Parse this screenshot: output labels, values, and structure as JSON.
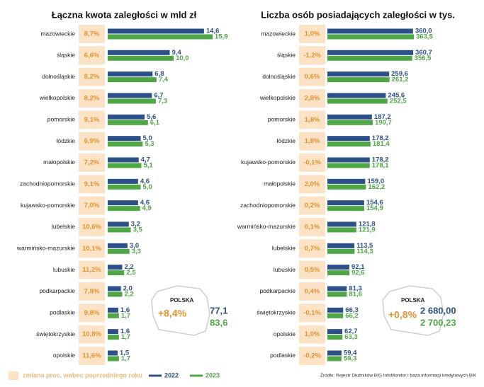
{
  "chart_data": [
    {
      "type": "bar",
      "title": "Łączna kwota zaległości w mld zł",
      "categories": [
        "mazowieckie",
        "śląskie",
        "dolnośląskie",
        "wielkopolskie",
        "pomorskie",
        "łódzkie",
        "małopolskie",
        "zachodniopomorskie",
        "kujawsko-pomorskie",
        "lubelskie",
        "warmińsko-mazurskie",
        "lubuskie",
        "podkarpackie",
        "podlaskie",
        "świętokrzyskie",
        "opolskie"
      ],
      "changes": [
        "8,7%",
        "6,6%",
        "8,2%",
        "8,2%",
        "9,1%",
        "6,9%",
        "7,2%",
        "9,1%",
        "7,0%",
        "10,6%",
        "10,1%",
        "11,2%",
        "7,8%",
        "9,8%",
        "10,8%",
        "11,6%"
      ],
      "series": [
        {
          "name": "2022",
          "color": "#2c5087",
          "values": [
            14.6,
            9.4,
            6.8,
            6.7,
            5.6,
            5.0,
            4.7,
            4.6,
            4.6,
            3.2,
            3.0,
            2.2,
            2.0,
            1.6,
            1.6,
            1.5
          ],
          "value_labels": [
            "14,6",
            "9,4",
            "6,8",
            "6,7",
            "5,6",
            "5,0",
            "4,7",
            "4,6",
            "4,6",
            "3,2",
            "3,0",
            "2,2",
            "2,0",
            "1,6",
            "1,6",
            "1,5"
          ]
        },
        {
          "name": "2023",
          "color": "#4ea644",
          "values": [
            15.9,
            10.0,
            7.4,
            7.3,
            6.1,
            5.3,
            5.1,
            5.0,
            4.9,
            3.5,
            3.3,
            2.5,
            2.2,
            1.7,
            1.7,
            1.7
          ],
          "value_labels": [
            "15,9",
            "10,0",
            "7,4",
            "7,3",
            "6,1",
            "5,3",
            "5,1",
            "5,0",
            "4,9",
            "3,5",
            "3,3",
            "2,5",
            "2,2",
            "1,7",
            "1,7",
            "1,7"
          ]
        }
      ],
      "summary": {
        "label": "POLSKA",
        "change": "+8,4%",
        "values": [
          "77,1",
          "83,6"
        ]
      }
    },
    {
      "type": "bar",
      "title": "Liczba osób posiadających zaległości w tys.",
      "categories": [
        "mazowieckie",
        "śląskie",
        "dolnośląskie",
        "wielkopolskie",
        "pomorskie",
        "łódzkie",
        "kujawsko-pomorskie",
        "małopolskie",
        "zachodniopomorskie",
        "warmińsko-mazurskie",
        "lubelskie",
        "lubuskie",
        "podkarpackie",
        "świętokrzyskie",
        "opolskie",
        "podlaskie"
      ],
      "changes": [
        "1,0%",
        "-1,2%",
        "0,6%",
        "2,8%",
        "1,8%",
        "1,8%",
        "-0,1%",
        "2,0%",
        "0,2%",
        "0,1%",
        "0,7%",
        "0,5%",
        "0,4%",
        "-0,1%",
        "1,0%",
        "-0,2%"
      ],
      "series": [
        {
          "name": "2022",
          "color": "#2c5087",
          "values": [
            360.0,
            360.7,
            259.6,
            245.6,
            187.2,
            178.2,
            178.2,
            159.0,
            154.6,
            121.8,
            113.5,
            92.1,
            81.3,
            66.3,
            62.7,
            59.4
          ],
          "value_labels": [
            "360,0",
            "360,7",
            "259,6",
            "245,6",
            "187,2",
            "178,2",
            "178,2",
            "159,0",
            "154,6",
            "121,8",
            "113,5",
            "92,1",
            "81,3",
            "66,3",
            "62,7",
            "59,4"
          ]
        },
        {
          "name": "2023",
          "color": "#4ea644",
          "values": [
            363.5,
            356.5,
            261.2,
            252.5,
            190.7,
            181.4,
            178.1,
            162.2,
            154.9,
            121.9,
            114.3,
            92.6,
            81.6,
            66.2,
            63.3,
            59.3
          ],
          "value_labels": [
            "363,5",
            "356,5",
            "261,2",
            "252,5",
            "190,7",
            "181,4",
            "178,1",
            "162,2",
            "154,9",
            "121,9",
            "114,3",
            "92,6",
            "81,6",
            "66,2",
            "63,3",
            "59,3"
          ]
        }
      ],
      "summary": {
        "label": "POLSKA",
        "change": "+0,8%",
        "values": [
          "2 680,00",
          "2 700,23"
        ]
      }
    }
  ],
  "legend": {
    "change_label": "zmiana proc. wobec poprzedniego roku"
  },
  "source": "Źródło: Rejestr Dłużników BIG InfoMonitor i baza informacji kredytowych BIK"
}
